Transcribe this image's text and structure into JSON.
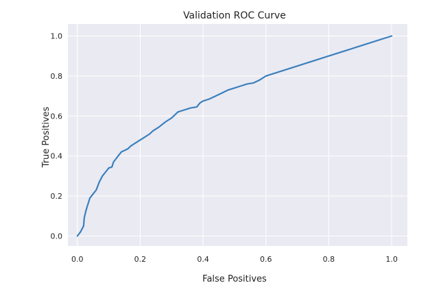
{
  "chart_data": {
    "type": "line",
    "title": "Validation ROC Curve",
    "xlabel": "False Positives",
    "ylabel": "True Positives",
    "xlim": [
      -0.03,
      1.05
    ],
    "ylim": [
      -0.05,
      1.06
    ],
    "xticks": [
      "0.0",
      "0.2",
      "0.4",
      "0.6",
      "0.8",
      "1.0"
    ],
    "yticks": [
      "0.0",
      "0.2",
      "0.4",
      "0.6",
      "0.8",
      "1.0"
    ],
    "grid": true,
    "background": "#eaeaf2",
    "grid_color": "#ffffff",
    "series": [
      {
        "color": "#3a7fbd",
        "x": [
          0.0,
          0.01,
          0.02,
          0.022,
          0.025,
          0.028,
          0.032,
          0.04,
          0.05,
          0.06,
          0.07,
          0.08,
          0.09,
          0.1,
          0.11,
          0.115,
          0.12,
          0.13,
          0.14,
          0.16,
          0.17,
          0.19,
          0.21,
          0.23,
          0.24,
          0.26,
          0.28,
          0.3,
          0.31,
          0.32,
          0.34,
          0.36,
          0.38,
          0.39,
          0.4,
          0.42,
          0.44,
          0.46,
          0.48,
          0.5,
          0.52,
          0.54,
          0.56,
          0.58,
          0.6,
          0.7,
          0.8,
          0.9,
          1.0
        ],
        "y": [
          0.0,
          0.02,
          0.05,
          0.09,
          0.11,
          0.13,
          0.15,
          0.19,
          0.21,
          0.23,
          0.27,
          0.3,
          0.32,
          0.34,
          0.345,
          0.37,
          0.38,
          0.4,
          0.42,
          0.435,
          0.45,
          0.47,
          0.49,
          0.51,
          0.525,
          0.545,
          0.57,
          0.59,
          0.605,
          0.62,
          0.63,
          0.64,
          0.645,
          0.665,
          0.675,
          0.685,
          0.7,
          0.715,
          0.73,
          0.74,
          0.75,
          0.76,
          0.765,
          0.78,
          0.8,
          0.85,
          0.9,
          0.95,
          1.0
        ]
      }
    ]
  }
}
